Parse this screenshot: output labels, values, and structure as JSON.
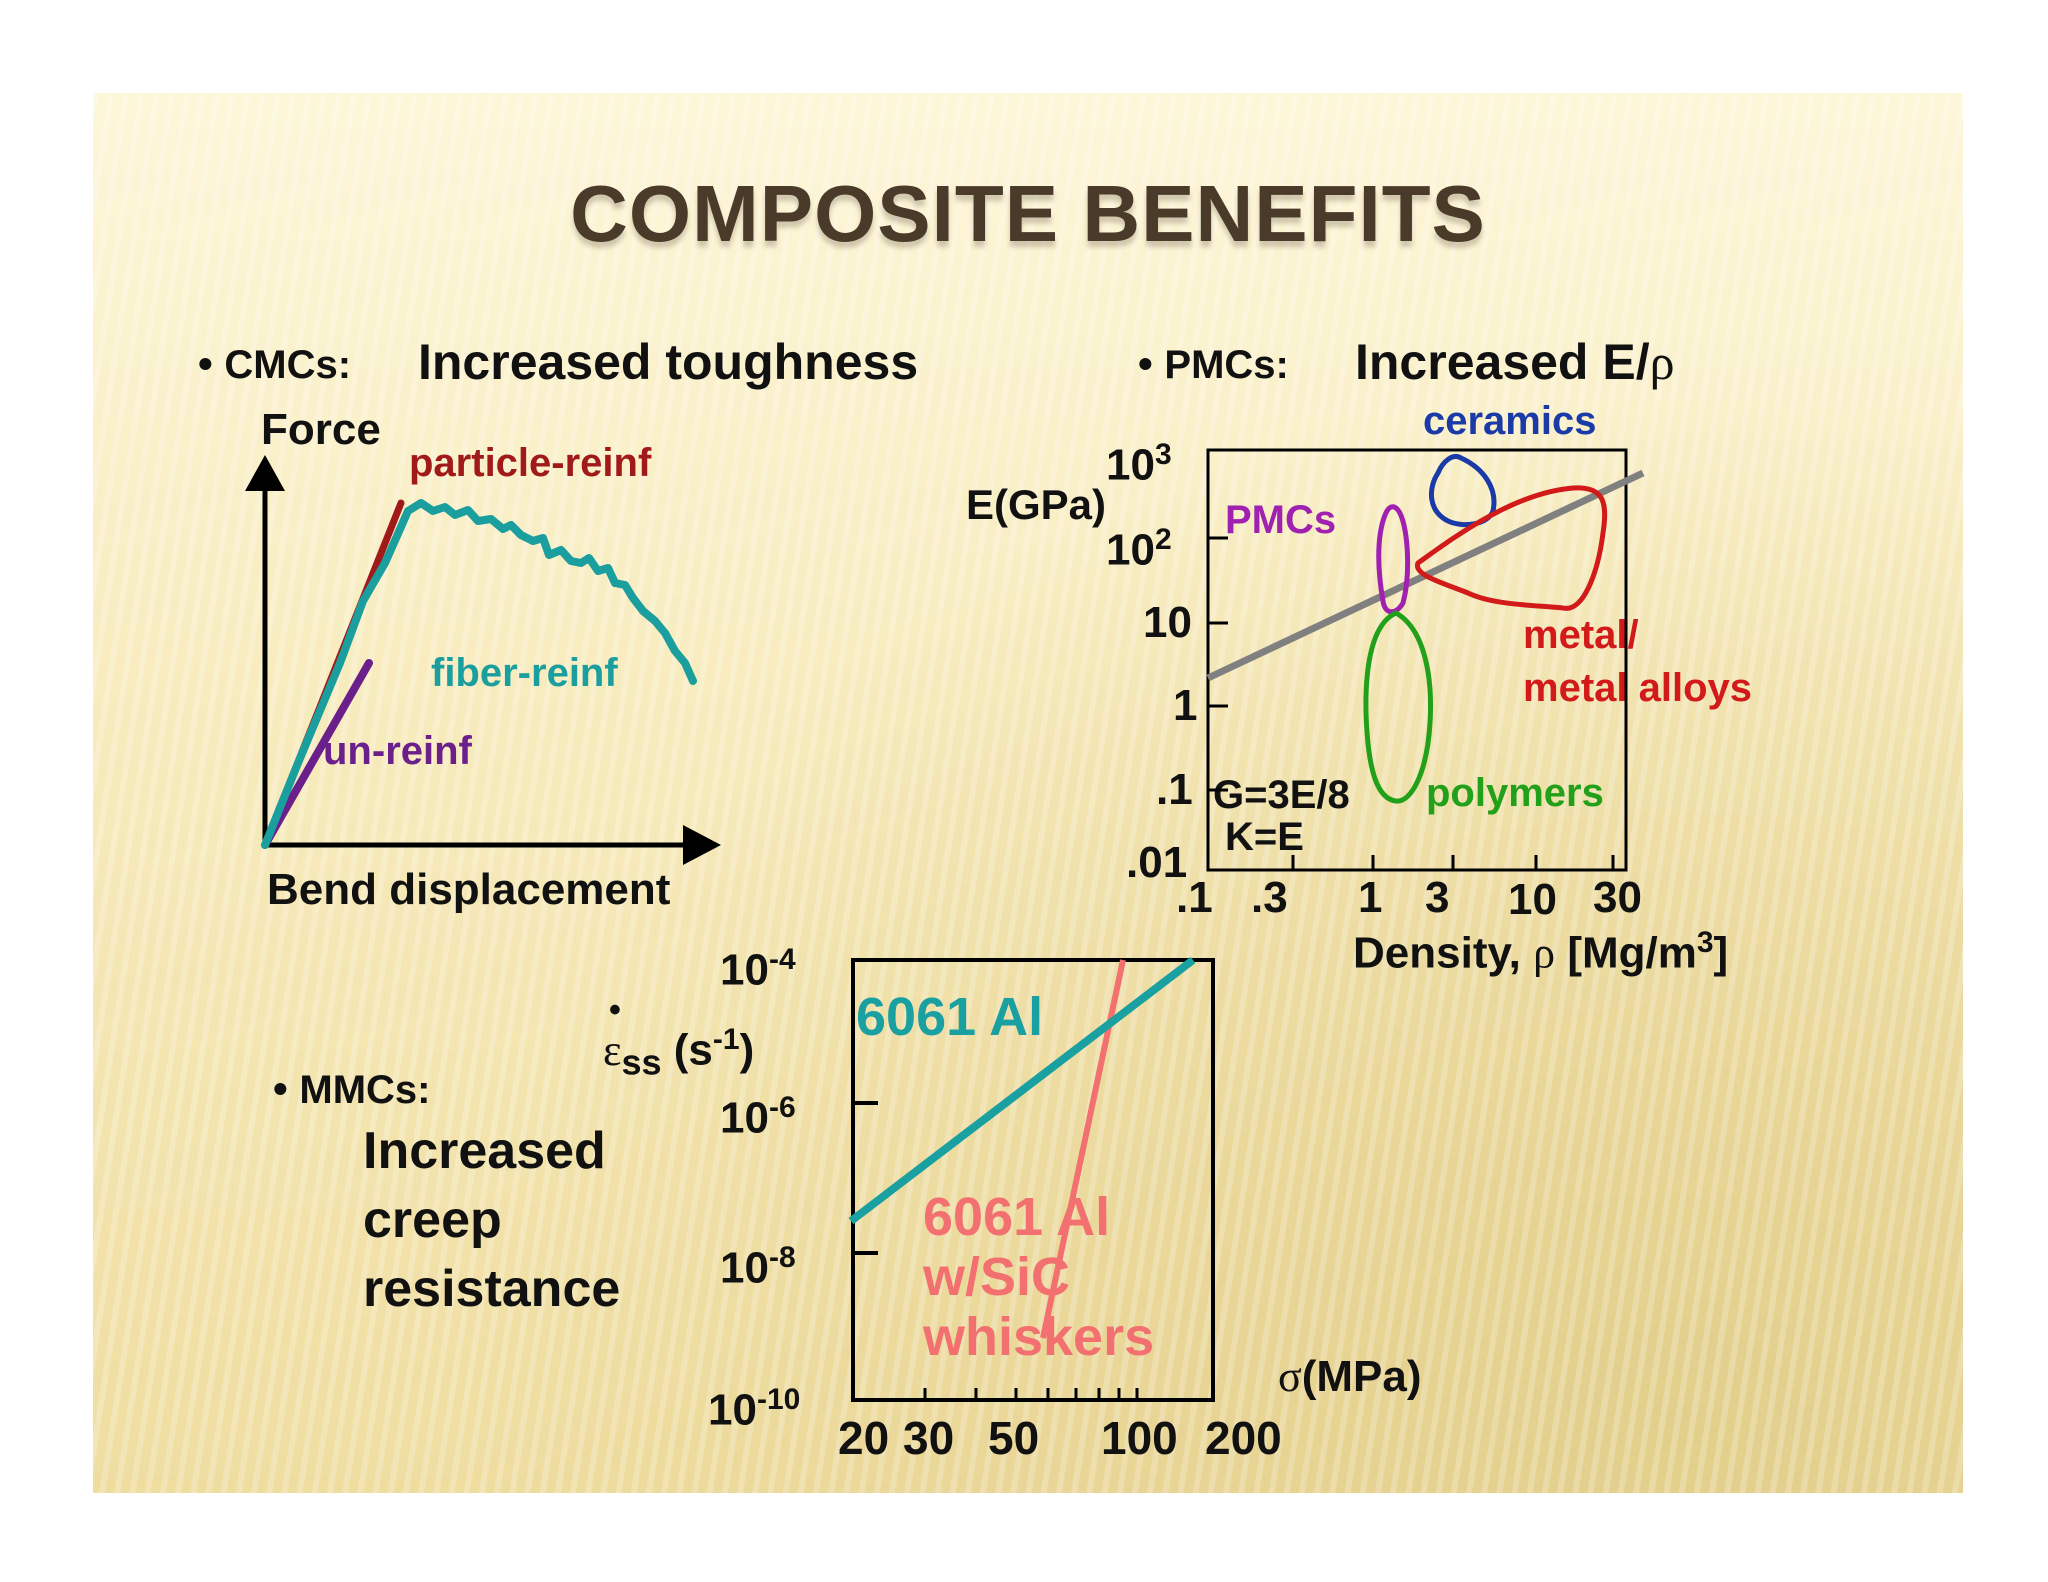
{
  "title": "COMPOSITE BENEFITS",
  "cmc": {
    "bullet_symbol": "•",
    "label": "CMCs:",
    "heading": "Increased toughness",
    "y_axis": "Force",
    "x_axis": "Bend displacement",
    "particle": "particle-reinf",
    "fiber": "fiber-reinf",
    "unreinf": "un-reinf"
  },
  "pmc": {
    "bullet_symbol": "•",
    "label": "PMCs:",
    "heading_prefix": "Increased E/",
    "heading_symbol": "ρ",
    "y_axis": "E(GPa)",
    "x_axis_prefix": "Density, ",
    "x_axis_symbol": "ρ",
    "x_axis_unit_prefix": " [Mg/m",
    "x_axis_unit_exp": "3",
    "x_axis_unit_suffix": "]",
    "y_ticks": [
      {
        "base": "10",
        "exp": "3"
      },
      {
        "base": "10",
        "exp": "2"
      },
      {
        "base": "10",
        "exp": ""
      },
      {
        "base": "1",
        "exp": ""
      },
      {
        "base": ".1",
        "exp": ""
      },
      {
        "base": ".01",
        "exp": ""
      }
    ],
    "x_ticks": [
      ".1",
      ".3",
      "1",
      "3",
      "10",
      "30"
    ],
    "regions": {
      "ceramics": "ceramics",
      "pmcs": "PMCs",
      "metal_line1": "metal/",
      "metal_line2": "metal alloys",
      "polymers": "polymers"
    },
    "formula1": "G=3E/8",
    "formula2": "K=E"
  },
  "mmc": {
    "bullet_symbol": "•",
    "label": "MMCs:",
    "desc_lines": [
      "Increased",
      "creep",
      "resistance"
    ],
    "y_axis_symbol": "ε",
    "y_axis_dot": "•",
    "y_axis_sub": "ss",
    "y_axis_unit_prefix": " (s",
    "y_axis_unit_exp": "-1",
    "y_axis_unit_suffix": ")",
    "x_axis_symbol": "σ",
    "x_axis_unit": "(MPa)",
    "y_ticks": [
      {
        "base": "10",
        "exp": "-4"
      },
      {
        "base": "10",
        "exp": "-6"
      },
      {
        "base": "10",
        "exp": "-8"
      },
      {
        "base": "10",
        "exp": "-10"
      }
    ],
    "x_ticks": [
      "20",
      "30",
      "50",
      "100",
      "200"
    ],
    "series_al": "6061 Al",
    "series_sic": [
      "6061 Al",
      "w/SiC",
      "whiskers"
    ]
  },
  "colors": {
    "title": "#4a3a2a",
    "particle": "#a11a1a",
    "fiber": "#1a9e9e",
    "unreinf": "#6a1f8a",
    "ceramics": "#1a3aa8",
    "pmcs": "#a020b0",
    "metals": "#d21a1a",
    "polymers": "#22a01a",
    "guide_line": "#808080",
    "al": "#1aa0a0",
    "sic": "#f27070"
  }
}
